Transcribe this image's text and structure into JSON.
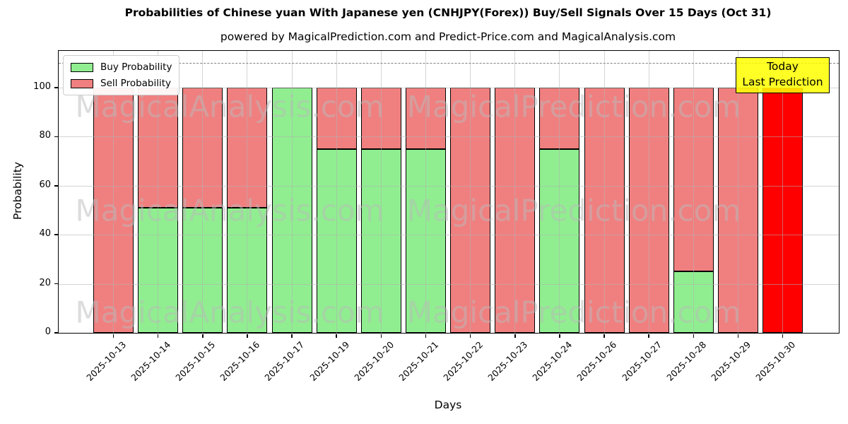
{
  "title": "Probabilities of Chinese yuan With Japanese yen (CNHJPY(Forex)) Buy/Sell Signals Over 15 Days (Oct 31)",
  "subtitle": "powered by MagicalPrediction.com and Predict-Price.com and MagicalAnalysis.com",
  "legend": {
    "items": [
      {
        "label": "Buy Probability",
        "color": "#90ee90"
      },
      {
        "label": "Sell Probability",
        "color": "#f08080"
      }
    ]
  },
  "annotation": {
    "line1": "Today",
    "line2": "Last Prediction",
    "bg_color": "#ffff00"
  },
  "watermarks": {
    "left_text": "MagicalAnalysis.com",
    "right_text": "MagicalPrediction.com"
  },
  "axes": {
    "xlabel": "Days",
    "ylabel": "Probability"
  },
  "chart_data": {
    "type": "bar",
    "stacked": true,
    "title": "Probabilities of Chinese yuan With Japanese yen (CNHJPY(Forex)) Buy/Sell Signals Over 15 Days (Oct 31)",
    "xlabel": "Days",
    "ylabel": "Probability",
    "ylim": [
      0,
      115
    ],
    "yticks": [
      0,
      20,
      40,
      60,
      80,
      100
    ],
    "grid": true,
    "legend_position": "upper-left",
    "dashed_threshold_y": 110,
    "categories": [
      "2025-10-13",
      "2025-10-14",
      "2025-10-15",
      "2025-10-16",
      "2025-10-17",
      "2025-10-19",
      "2025-10-20",
      "2025-10-21",
      "2025-10-22",
      "2025-10-23",
      "2025-10-24",
      "2025-10-26",
      "2025-10-27",
      "2025-10-28",
      "2025-10-29",
      "2025-10-30"
    ],
    "series": [
      {
        "name": "Buy Probability",
        "color": "#90ee90",
        "values": [
          0,
          51,
          51,
          51,
          100,
          75,
          75,
          75,
          0,
          0,
          75,
          0,
          0,
          25,
          0,
          0
        ]
      },
      {
        "name": "Sell Probability",
        "color": "#f08080",
        "values": [
          100,
          49,
          49,
          49,
          0,
          25,
          25,
          25,
          100,
          100,
          25,
          100,
          100,
          75,
          100,
          100
        ]
      }
    ],
    "today_bar": {
      "category": "2025-10-30",
      "color": "#ff0000",
      "total": 100,
      "note": "Today / Last Prediction"
    },
    "bar_edge_color": "#000000"
  }
}
